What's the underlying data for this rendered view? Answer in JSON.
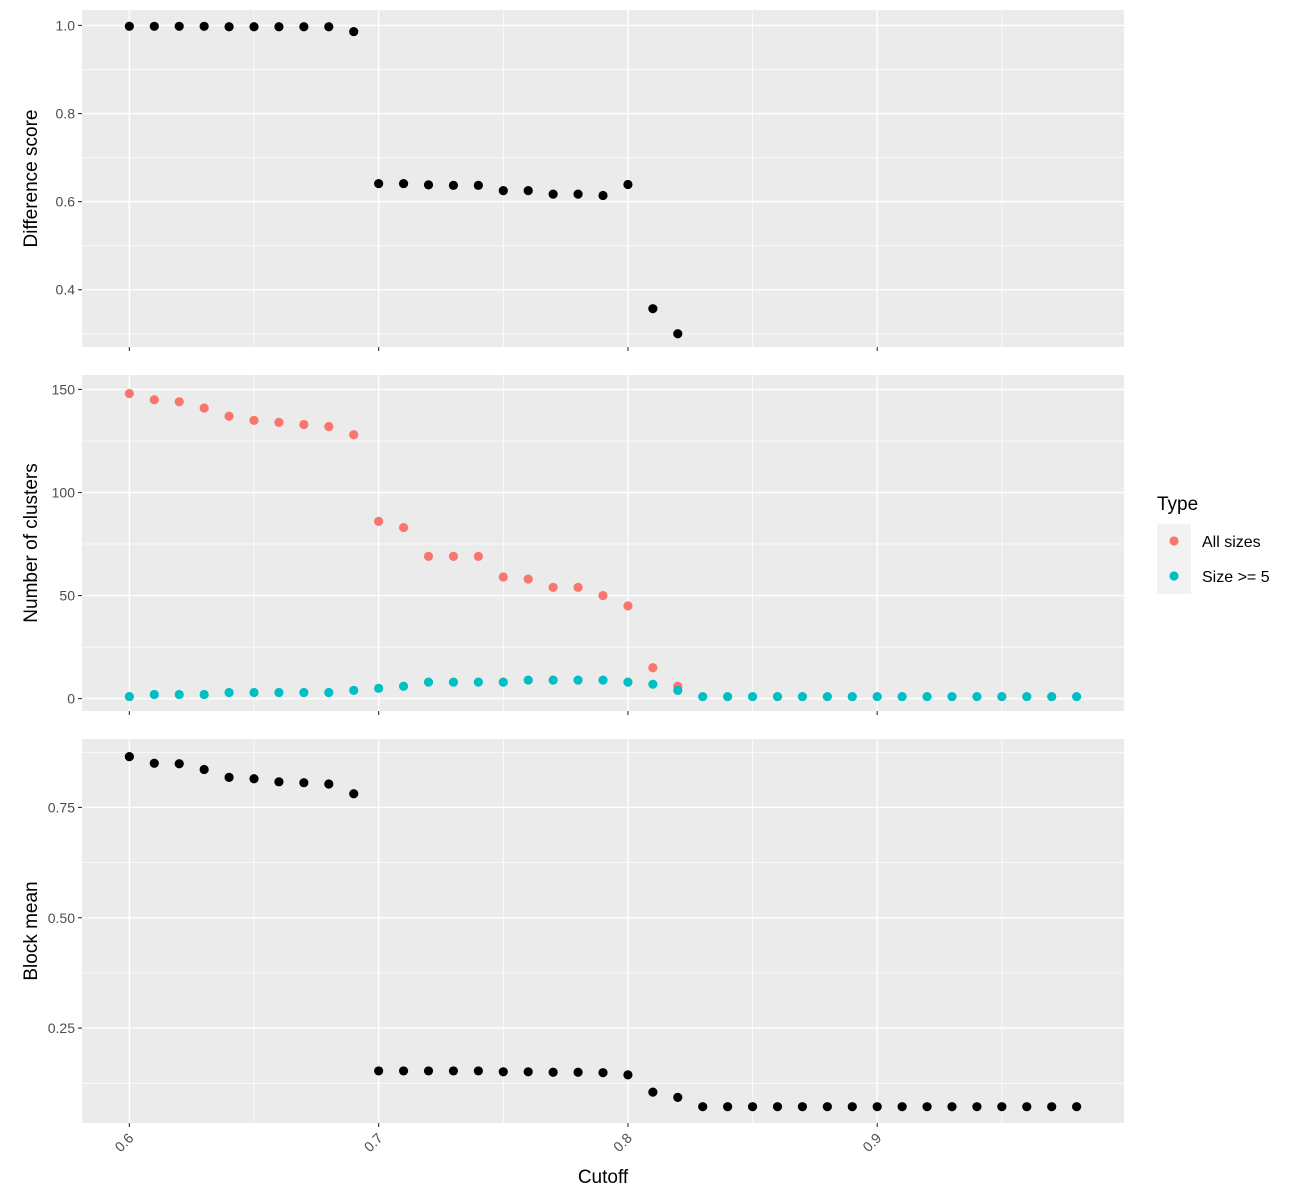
{
  "chart_data": {
    "type": "scatter",
    "xlabel": "Cutoff",
    "x_ticks": [
      "0.6",
      "0.7",
      "0.8",
      "0.9"
    ],
    "x_tick_values": [
      0.6,
      0.7,
      0.8,
      0.9
    ],
    "xlim": [
      0.581,
      0.999
    ],
    "grid": true,
    "legend": {
      "title": "Type",
      "placement": "right",
      "entries": [
        {
          "label": "All sizes",
          "color": "#F8766D"
        },
        {
          "label": "Size >= 5",
          "color": "#00BFC4"
        }
      ]
    },
    "panels": [
      {
        "ylabel": "Difference score",
        "ylim": [
          0.27,
          1.035
        ],
        "y_ticks": [
          "0.4",
          "0.6",
          "0.8",
          "1.0"
        ],
        "y_tick_values": [
          0.4,
          0.6,
          0.8,
          1.0
        ],
        "y_minor": [
          0.3,
          0.5,
          0.7,
          0.9
        ],
        "series": [
          {
            "color": "#000000",
            "x": [
              0.6,
              0.61,
              0.62,
              0.63,
              0.64,
              0.65,
              0.66,
              0.67,
              0.68,
              0.69,
              0.7,
              0.71,
              0.72,
              0.73,
              0.74,
              0.75,
              0.76,
              0.77,
              0.78,
              0.79,
              0.8,
              0.81,
              0.82
            ],
            "y": [
              0.998,
              0.998,
              0.998,
              0.998,
              0.997,
              0.997,
              0.997,
              0.997,
              0.997,
              0.986,
              0.641,
              0.641,
              0.638,
              0.637,
              0.637,
              0.625,
              0.625,
              0.617,
              0.617,
              0.614,
              0.639,
              0.357,
              0.3
            ]
          }
        ]
      },
      {
        "ylabel": "Number of clusters",
        "ylim": [
          -6,
          157
        ],
        "y_ticks": [
          "0",
          "50",
          "100",
          "150"
        ],
        "y_tick_values": [
          0,
          50,
          100,
          150
        ],
        "y_minor": [
          25,
          75,
          125
        ],
        "series": [
          {
            "name": "All sizes",
            "color": "#F8766D",
            "x": [
              0.6,
              0.61,
              0.62,
              0.63,
              0.64,
              0.65,
              0.66,
              0.67,
              0.68,
              0.69,
              0.7,
              0.71,
              0.72,
              0.73,
              0.74,
              0.75,
              0.76,
              0.77,
              0.78,
              0.79,
              0.8,
              0.81,
              0.82
            ],
            "y": [
              148,
              145,
              144,
              141,
              137,
              135,
              134,
              133,
              132,
              128,
              86,
              83,
              69,
              69,
              69,
              59,
              58,
              54,
              54,
              50,
              45,
              15,
              6
            ]
          },
          {
            "name": "Size >= 5",
            "color": "#00BFC4",
            "x": [
              0.6,
              0.61,
              0.62,
              0.63,
              0.64,
              0.65,
              0.66,
              0.67,
              0.68,
              0.69,
              0.7,
              0.71,
              0.72,
              0.73,
              0.74,
              0.75,
              0.76,
              0.77,
              0.78,
              0.79,
              0.8,
              0.81,
              0.82,
              0.83,
              0.84,
              0.85,
              0.86,
              0.87,
              0.88,
              0.89,
              0.9,
              0.91,
              0.92,
              0.93,
              0.94,
              0.95,
              0.96,
              0.97,
              0.98
            ],
            "y": [
              1,
              2,
              2,
              2,
              3,
              3,
              3,
              3,
              3,
              4,
              5,
              6,
              8,
              8,
              8,
              8,
              9,
              9,
              9,
              9,
              8,
              7,
              4,
              1,
              1,
              1,
              1,
              1,
              1,
              1,
              1,
              1,
              1,
              1,
              1,
              1,
              1,
              1,
              1
            ]
          }
        ]
      },
      {
        "ylabel": "Block mean",
        "ylim": [
          0.035,
          0.905
        ],
        "y_ticks": [
          "0.25",
          "0.50",
          "0.75"
        ],
        "y_tick_values": [
          0.25,
          0.5,
          0.75
        ],
        "y_minor": [
          0.125,
          0.375,
          0.625,
          0.875
        ],
        "series": [
          {
            "color": "#000000",
            "x": [
              0.6,
              0.61,
              0.62,
              0.63,
              0.64,
              0.65,
              0.66,
              0.67,
              0.68,
              0.69,
              0.7,
              0.71,
              0.72,
              0.73,
              0.74,
              0.75,
              0.76,
              0.77,
              0.78,
              0.79,
              0.8,
              0.81,
              0.82,
              0.83,
              0.84,
              0.85,
              0.86,
              0.87,
              0.88,
              0.89,
              0.9,
              0.91,
              0.92,
              0.93,
              0.94,
              0.95,
              0.96,
              0.97,
              0.98
            ],
            "y": [
              0.865,
              0.85,
              0.849,
              0.836,
              0.818,
              0.815,
              0.808,
              0.806,
              0.803,
              0.781,
              0.153,
              0.153,
              0.153,
              0.153,
              0.153,
              0.151,
              0.151,
              0.15,
              0.15,
              0.149,
              0.144,
              0.105,
              0.093,
              0.072,
              0.072,
              0.072,
              0.072,
              0.072,
              0.072,
              0.072,
              0.072,
              0.072,
              0.072,
              0.072,
              0.072,
              0.072,
              0.072,
              0.072,
              0.072
            ]
          }
        ]
      }
    ]
  }
}
